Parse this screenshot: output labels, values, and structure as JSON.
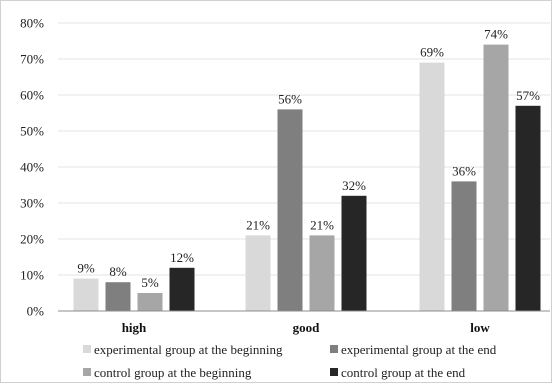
{
  "chart_data": {
    "type": "bar",
    "title": "",
    "xlabel": "",
    "ylabel": "",
    "categories": [
      "high",
      "good",
      "low"
    ],
    "ylim": [
      0,
      80
    ],
    "yticks": [
      0,
      10,
      20,
      30,
      40,
      50,
      60,
      70,
      80
    ],
    "ytick_labels": [
      "0%",
      "10%",
      "20%",
      "30%",
      "40%",
      "50%",
      "60%",
      "70%",
      "80%"
    ],
    "grid": true,
    "legend_position": "bottom",
    "series": [
      {
        "name": "experimental group at the beginning",
        "values": [
          9,
          21,
          69
        ],
        "labels": [
          "9%",
          "21%",
          "69%"
        ],
        "color": "#d9d9d9"
      },
      {
        "name": "experimental group at the end",
        "values": [
          8,
          56,
          36
        ],
        "labels": [
          "8%",
          "56%",
          "36%"
        ],
        "color": "#7f7f7f"
      },
      {
        "name": "control group at the beginning",
        "values": [
          5,
          21,
          74
        ],
        "labels": [
          "5%",
          "21%",
          "74%"
        ],
        "color": "#a6a6a6"
      },
      {
        "name": "control group at the end",
        "values": [
          12,
          32,
          57
        ],
        "labels": [
          "12%",
          "32%",
          "57%"
        ],
        "color": "#262626"
      }
    ]
  }
}
